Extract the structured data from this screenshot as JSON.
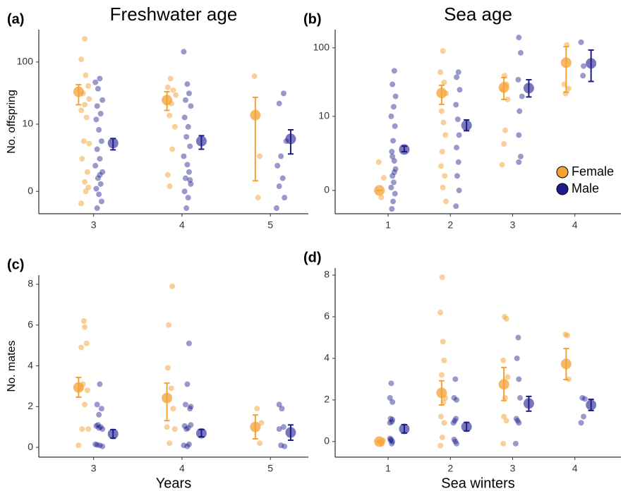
{
  "chart_data": [
    {
      "type": "scatter",
      "label": "(a)",
      "title": "Freshwater age",
      "ylabel": "No. offspring",
      "y_scale": "log1p",
      "xlim": [
        2.38,
        5.43
      ],
      "xticks": [
        3,
        4,
        5
      ],
      "ylim": [
        -0.55,
        320
      ],
      "yticks": [
        0,
        10,
        100
      ],
      "series": [
        {
          "name": "Female",
          "color": "#f4a234",
          "x": [
            2.9,
            2.86,
            2.91,
            2.94,
            2.88,
            2.95,
            2.9,
            2.86,
            2.92,
            2.89,
            2.95,
            2.87,
            2.93,
            2.9,
            2.91,
            2.86,
            2.94,
            3.87,
            3.84,
            3.9,
            3.93,
            3.88,
            3.86,
            3.92,
            3.89,
            3.84,
            3.86,
            4.82,
            4.88,
            4.86
          ],
          "values": [
            230,
            110,
            62,
            42,
            32,
            26,
            21,
            17,
            13,
            5,
            4.5,
            2.2,
            1,
            0.4,
            0,
            -0.35,
            0.15,
            55,
            40,
            36,
            30,
            22,
            14,
            9,
            3.5,
            0.8,
            0.2,
            60,
            2.5,
            -0.2
          ],
          "mean": {
            "x": [
              2.83,
              3.83,
              4.83
            ],
            "values": [
              34,
              25,
              14.2
            ],
            "lower": [
              21,
              17,
              0.46
            ],
            "upper": [
              44,
              34,
              27.6
            ]
          }
        },
        {
          "name": "Male",
          "color": "#1c1c8c",
          "x": [
            3.07,
            3.02,
            3.05,
            3.1,
            3.04,
            3.08,
            3.03,
            3.06,
            3.09,
            3.04,
            3.07,
            3.02,
            3.1,
            3.05,
            3.08,
            3.03,
            3.06,
            3.09,
            3.04,
            3.07,
            4.02,
            4.06,
            4.08,
            4.04,
            4.1,
            4.03,
            4.07,
            4.05,
            4.09,
            4.02,
            4.06,
            4.08,
            4.04,
            4.1,
            4.03,
            4.07,
            4.05,
            4.09,
            5.15,
            5.1,
            5.18,
            5.12,
            5.08,
            5.14,
            5.1,
            5.16,
            5.07
          ],
          "values": [
            55,
            48,
            38,
            25,
            20,
            15,
            12,
            8,
            5,
            3.5,
            2.2,
            1.5,
            1,
            0.6,
            0.3,
            0.1,
            -0.1,
            -0.3,
            -0.45,
            0.8,
            145,
            45,
            32,
            25,
            20,
            13,
            9,
            6,
            4,
            2.5,
            1.6,
            1,
            0.6,
            0.3,
            0,
            -0.2,
            -0.45,
            0.5,
            32,
            22,
            5,
            2.5,
            1.5,
            0.6,
            0.2,
            -0.2,
            -0.45
          ],
          "mean": {
            "x": [
              3.22,
              4.22,
              5.23
            ],
            "values": [
              4.6,
              5.0,
              5.5
            ],
            "lower": [
              3.4,
              3.5,
              2.8
            ],
            "upper": [
              5.6,
              6.3,
              8.0
            ]
          }
        }
      ]
    },
    {
      "type": "scatter",
      "label": "(b)",
      "title": "Sea age",
      "y_scale": "log1p",
      "legend": "right",
      "xlim": [
        0.15,
        4.74
      ],
      "xticks": [
        1,
        2,
        3,
        4
      ],
      "ylim": [
        -0.53,
        181
      ],
      "yticks": [
        0,
        10,
        100
      ],
      "series": [
        {
          "name": "Female",
          "color": "#f4a234",
          "x": [
            0.85,
            0.93,
            0.89,
            1.88,
            1.84,
            1.9,
            1.93,
            1.86,
            1.89,
            1.92,
            1.87,
            1.85,
            1.91,
            1.88,
            1.93,
            2.87,
            2.9,
            2.84,
            2.92,
            2.88,
            2.86,
            2.83,
            3.87,
            3.83,
            3.9,
            3.85
          ],
          "values": [
            1.5,
            0.5,
            -0.2,
            90,
            45,
            32,
            22,
            12,
            8,
            5,
            2.5,
            1.2,
            0.6,
            0.1,
            -0.3,
            40,
            30,
            25,
            18,
            6,
            3.5,
            1.3,
            110,
            30,
            26,
            22
          ],
          "mean": {
            "x": [
              0.86,
              1.86,
              2.86,
              3.86
            ],
            "values": [
              0,
              22.4,
              27,
              61.5
            ],
            "lower": [
              0,
              15.2,
              18,
              23
            ],
            "upper": [
              0,
              29,
              37.6,
              104
            ]
          }
        },
        {
          "name": "Male",
          "color": "#1c1c8c",
          "x": [
            1.1,
            1.07,
            1.12,
            1.09,
            1.05,
            1.11,
            1.08,
            1.06,
            1.1,
            1.12,
            1.07,
            1.09,
            1.05,
            1.11,
            1.08,
            1.06,
            1.1,
            1.07,
            2.13,
            2.1,
            2.15,
            2.09,
            2.12,
            2.14,
            2.1,
            2.13,
            2.11,
            2.14,
            2.09,
            3.1,
            3.13,
            3.09,
            3.15,
            3.11,
            3.1,
            3.13,
            3.1,
            4.1,
            4.14,
            4.13
          ],
          "values": [
            47,
            30,
            20,
            14,
            10,
            7,
            4,
            2.5,
            1.6,
            1,
            0.6,
            0.3,
            0.1,
            -0.1,
            -0.3,
            -0.45,
            0.8,
            2,
            45,
            38,
            25,
            15,
            9,
            5,
            3,
            1.5,
            0.6,
            0,
            -0.4,
            140,
            85,
            35,
            20,
            12,
            5,
            2,
            1.5,
            120,
            55,
            40
          ],
          "mean": {
            "x": [
              1.26,
              2.26,
              3.26,
              4.26
            ],
            "values": [
              2.76,
              7.2,
              26.4,
              60
            ],
            "lower": [
              2.5,
              5.9,
              19.6,
              33
            ],
            "upper": [
              3.2,
              8.8,
              35,
              93
            ]
          }
        }
      ]
    },
    {
      "type": "scatter",
      "label": "(c)",
      "ylabel": "No. mates",
      "xlabel": "Years",
      "xlim": [
        2.38,
        5.43
      ],
      "xticks": [
        3,
        4,
        5
      ],
      "ylim": [
        -0.48,
        8.45
      ],
      "yticks": [
        0,
        2,
        4,
        6,
        8
      ],
      "series": [
        {
          "name": "Female",
          "color": "#f4a234",
          "x": [
            2.83,
            2.87,
            2.9,
            2.93,
            2.88,
            2.86,
            2.92,
            2.9,
            2.89,
            2.94,
            2.85,
            3.86,
            3.83,
            3.9,
            3.88,
            3.84,
            3.85,
            3.89,
            3.92,
            4.85,
            4.9,
            4.88
          ],
          "values": [
            0.1,
            0.9,
            2.1,
            2.8,
            3.1,
            4.9,
            5.1,
            5.9,
            6.2,
            0.9,
            2.9,
            0.2,
            1.0,
            1.9,
            2.9,
            3.9,
            6.0,
            7.9,
            0.9,
            1.9,
            1.2,
            0.2
          ],
          "mean": {
            "x": [
              2.83,
              3.83,
              4.83
            ],
            "values": [
              2.94,
              2.42,
              1.0
            ],
            "lower": [
              2.46,
              1.31,
              0.42
            ],
            "upper": [
              3.43,
              3.15,
              1.59
            ]
          }
        },
        {
          "name": "Male",
          "color": "#1c1c8c",
          "x": [
            3.07,
            3.04,
            3.09,
            3.05,
            3.08,
            3.1,
            3.03,
            3.06,
            3.02,
            3.07,
            3.1,
            3.04,
            3.06,
            4.08,
            4.06,
            4.04,
            4.09,
            4.03,
            4.07,
            4.1,
            4.05,
            4.02,
            4.08,
            4.06,
            4.1,
            5.1,
            5.13,
            5.15,
            5.1,
            5.12,
            5.16
          ],
          "values": [
            3.1,
            2.1,
            1.9,
            1.1,
            1.0,
            0.9,
            1.05,
            0.95,
            0.15,
            0.1,
            0.05,
            0.12,
            1.6,
            5.1,
            3.1,
            2.1,
            1.9,
            1.05,
            0.95,
            1.1,
            0.9,
            0.1,
            0.15,
            0.05,
            2.0,
            2.1,
            1.9,
            1.0,
            0.9,
            0.1,
            0.05
          ],
          "mean": {
            "x": [
              3.22,
              4.22,
              5.23
            ],
            "values": [
              0.66,
              0.69,
              0.73
            ],
            "lower": [
              0.45,
              0.52,
              0.35
            ],
            "upper": [
              0.87,
              0.87,
              1.1
            ]
          }
        }
      ]
    },
    {
      "type": "scatter",
      "label": "(d)",
      "xlabel": "Sea winters",
      "xlim": [
        0.15,
        4.74
      ],
      "xticks": [
        1,
        2,
        3,
        4
      ],
      "ylim": [
        -0.75,
        8.34
      ],
      "yticks": [
        0,
        2,
        4,
        6,
        8
      ],
      "series": [
        {
          "name": "Female",
          "color": "#f4a234",
          "x": [
            0.9,
            0.87,
            0.92,
            1.87,
            1.84,
            1.88,
            1.9,
            1.86,
            1.92,
            1.89,
            1.85,
            1.9,
            1.87,
            1.84,
            2.87,
            2.9,
            2.85,
            2.92,
            2.88,
            2.86,
            2.9,
            2.85,
            3.88,
            3.85,
            3.9
          ],
          "values": [
            -0.1,
            0,
            0.05,
            7.9,
            6.2,
            4.8,
            3.9,
            3.2,
            2.1,
            1.9,
            1.2,
            0.9,
            0.2,
            -0.2,
            6.0,
            5.9,
            3.9,
            3.1,
            2.1,
            1.2,
            1.0,
            -0.1,
            5.1,
            5.15,
            3.0
          ],
          "mean": {
            "x": [
              0.86,
              1.86,
              2.86,
              3.86
            ],
            "values": [
              0,
              2.34,
              2.75,
              3.73
            ],
            "lower": [
              0,
              1.76,
              1.97,
              2.98
            ],
            "upper": [
              0,
              2.92,
              3.56,
              4.47
            ]
          }
        },
        {
          "name": "Male",
          "color": "#1c1c8c",
          "x": [
            1.05,
            1.03,
            1.07,
            1.04,
            1.06,
            1.03,
            1.07,
            1.05,
            1.04,
            1.06,
            1.03,
            1.07,
            2.08,
            2.06,
            2.1,
            2.07,
            2.05,
            2.09,
            2.06,
            2.1,
            2.08,
            3.09,
            3.07,
            3.1,
            3.12,
            3.06,
            3.1,
            3.08,
            3.05,
            4.12,
            4.16,
            4.14,
            4.1
          ],
          "values": [
            2.8,
            2.1,
            1.9,
            1.1,
            0.95,
            0.9,
            1.05,
            0.1,
            0.05,
            -0.1,
            0.15,
            0,
            3.0,
            2.1,
            2.0,
            1.0,
            0.9,
            1.1,
            0.1,
            -0.1,
            0,
            5.0,
            4.0,
            3.0,
            2.1,
            1.1,
            0.9,
            1.0,
            -0.1,
            2.1,
            2.05,
            1.2,
            0.9
          ],
          "mean": {
            "x": [
              1.26,
              2.26,
              3.26,
              4.26
            ],
            "values": [
              0.61,
              0.71,
              1.83,
              1.76
            ],
            "lower": [
              0.41,
              0.51,
              1.46,
              1.49
            ],
            "upper": [
              0.81,
              0.92,
              2.17,
              2.03
            ]
          }
        }
      ]
    }
  ]
}
